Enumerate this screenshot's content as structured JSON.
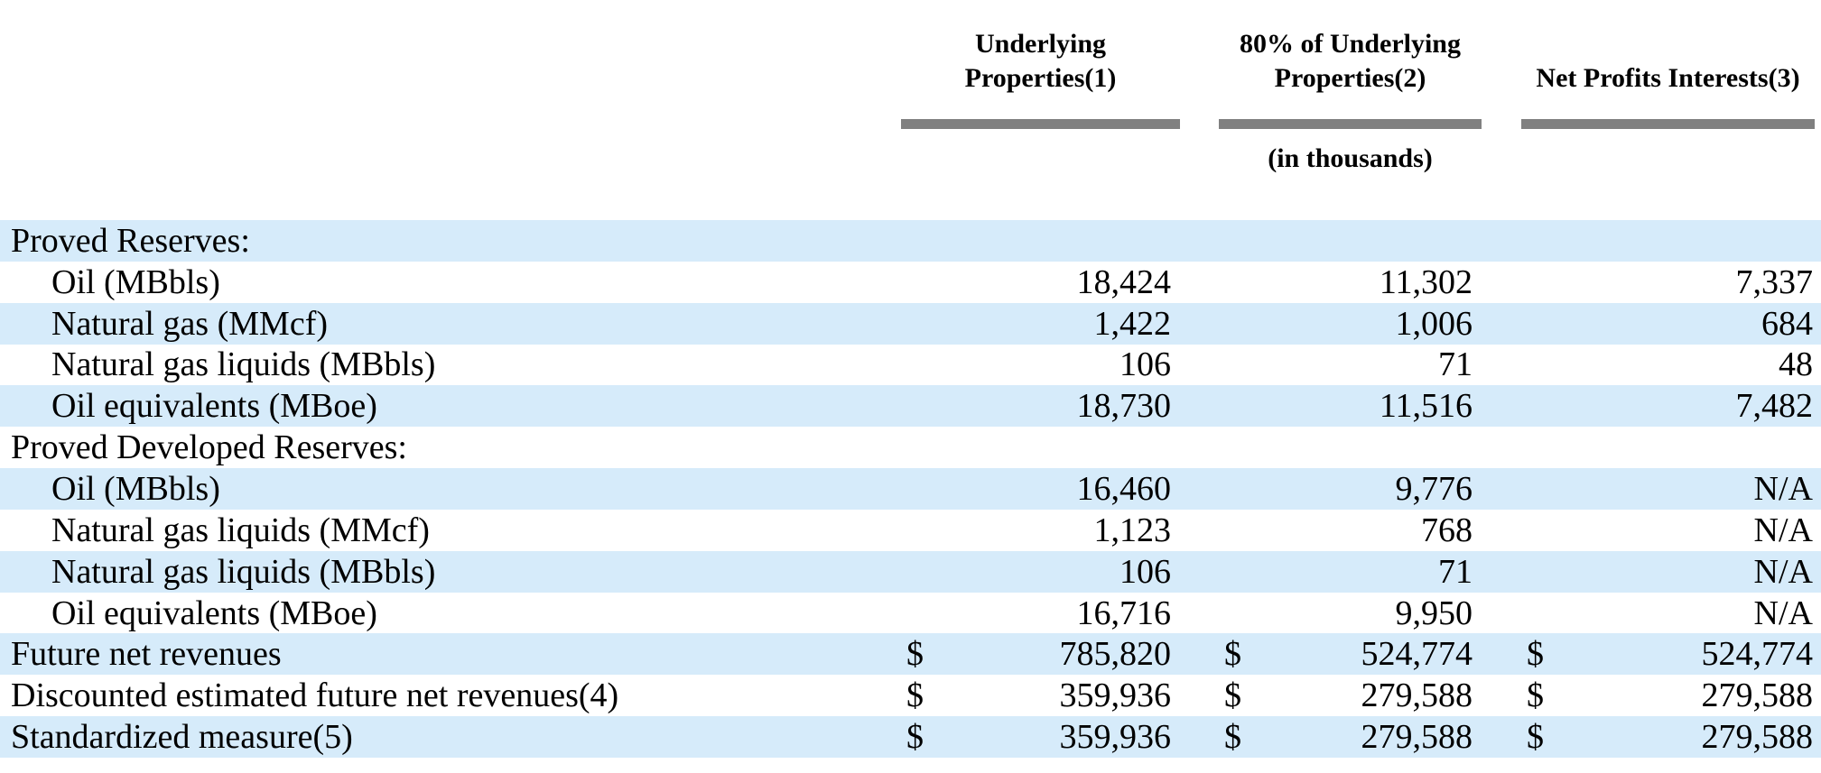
{
  "currency_symbol": "$",
  "colors": {
    "stripe_blue": "#d6ebfa",
    "rule_gray": "#808080",
    "text": "#000000"
  },
  "header": {
    "columns": [
      {
        "line1": "Underlying",
        "line2": "Properties(1)"
      },
      {
        "line1": "80% of Underlying",
        "line2": "Properties(2)"
      },
      {
        "line1": "",
        "line2": "Net Profits Interests(3)"
      }
    ],
    "units_note": "(in thousands)"
  },
  "rows": [
    {
      "label": "Proved Reserves:",
      "indent": false,
      "shaded": true,
      "dollar": false,
      "values": [
        null,
        null,
        null
      ]
    },
    {
      "label": "Oil (MBbls)",
      "indent": true,
      "shaded": false,
      "dollar": false,
      "values": [
        "18,424",
        "11,302",
        "7,337"
      ]
    },
    {
      "label": "Natural gas (MMcf)",
      "indent": true,
      "shaded": true,
      "dollar": false,
      "values": [
        "1,422",
        "1,006",
        "684"
      ]
    },
    {
      "label": "Natural gas liquids (MBbls)",
      "indent": true,
      "shaded": false,
      "dollar": false,
      "values": [
        "106",
        "71",
        "48"
      ]
    },
    {
      "label": "Oil equivalents (MBoe)",
      "indent": true,
      "shaded": true,
      "dollar": false,
      "values": [
        "18,730",
        "11,516",
        "7,482"
      ]
    },
    {
      "label": "Proved Developed Reserves:",
      "indent": false,
      "shaded": false,
      "dollar": false,
      "values": [
        null,
        null,
        null
      ]
    },
    {
      "label": "Oil (MBbls)",
      "indent": true,
      "shaded": true,
      "dollar": false,
      "values": [
        "16,460",
        "9,776",
        "N/A"
      ]
    },
    {
      "label": "Natural gas liquids (MMcf)",
      "indent": true,
      "shaded": false,
      "dollar": false,
      "values": [
        "1,123",
        "768",
        "N/A"
      ]
    },
    {
      "label": "Natural gas liquids (MBbls)",
      "indent": true,
      "shaded": true,
      "dollar": false,
      "values": [
        "106",
        "71",
        "N/A"
      ]
    },
    {
      "label": "Oil equivalents (MBoe)",
      "indent": true,
      "shaded": false,
      "dollar": false,
      "values": [
        "16,716",
        "9,950",
        "N/A"
      ]
    },
    {
      "label": "Future net revenues",
      "indent": false,
      "shaded": true,
      "dollar": true,
      "values": [
        "785,820",
        "524,774",
        "524,774"
      ]
    },
    {
      "label": "Discounted estimated future net revenues(4)",
      "indent": false,
      "shaded": false,
      "dollar": true,
      "values": [
        "359,936",
        "279,588",
        "279,588"
      ]
    },
    {
      "label": "Standardized measure(5)",
      "indent": false,
      "shaded": true,
      "dollar": true,
      "values": [
        "359,936",
        "279,588",
        "279,588"
      ]
    }
  ]
}
